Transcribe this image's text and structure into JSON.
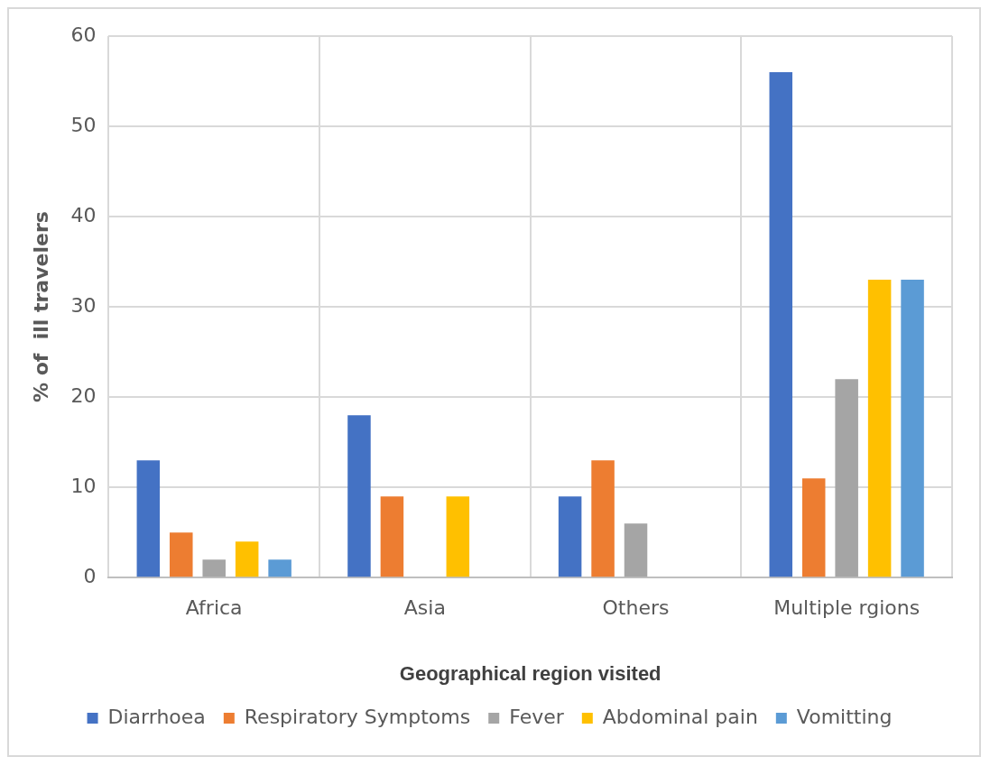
{
  "chart_data": {
    "type": "bar",
    "xlabel": "Geographical region visited",
    "ylabel": "% of  ill travelers",
    "categories": [
      "Africa",
      "Asia",
      "Others",
      "Multiple rgions"
    ],
    "series": [
      {
        "name": "Diarrhoea",
        "color": "#4472c4",
        "values": [
          13,
          18,
          9,
          56
        ]
      },
      {
        "name": "Respiratory Symptoms",
        "color": "#ed7d31",
        "values": [
          5,
          9,
          13,
          11
        ]
      },
      {
        "name": "Fever",
        "color": "#a5a5a5",
        "values": [
          2,
          0,
          6,
          22
        ]
      },
      {
        "name": "Abdominal pain",
        "color": "#ffc000",
        "values": [
          4,
          9,
          0,
          33
        ]
      },
      {
        "name": "Vomitting",
        "color": "#5b9bd5",
        "values": [
          2,
          0,
          0,
          33
        ]
      }
    ],
    "ylim": [
      0,
      60
    ],
    "yticks": [
      0,
      10,
      20,
      30,
      40,
      50,
      60
    ],
    "grid": true,
    "legend": "bottom"
  }
}
